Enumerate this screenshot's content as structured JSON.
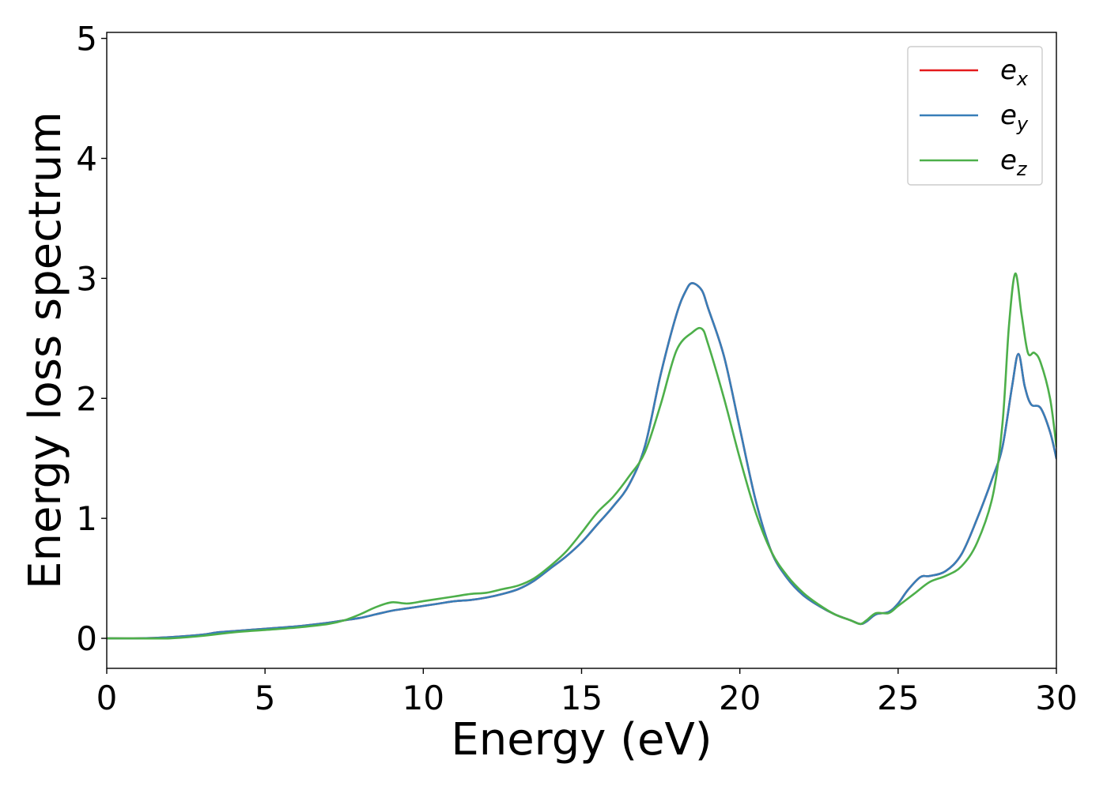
{
  "chart_data": {
    "type": "line",
    "title": "",
    "xlabel": "Energy (eV)",
    "ylabel": "Energy loss spectrum",
    "xlim": [
      0,
      30
    ],
    "ylim": [
      -0.25,
      5.05
    ],
    "xticks": [
      0,
      5,
      10,
      15,
      20,
      25,
      30
    ],
    "yticks": [
      0,
      1,
      2,
      3,
      4,
      5
    ],
    "grid": false,
    "legend_position": "top-right",
    "series": [
      {
        "name": "e_x",
        "label_base": "e",
        "label_sub": "x",
        "color": "#e41a1c",
        "x": [
          0,
          1,
          2,
          3,
          3.5,
          4,
          5,
          6,
          7,
          7.5,
          8,
          8.5,
          9,
          9.5,
          10,
          10.5,
          11,
          11.5,
          12,
          12.5,
          13,
          13.5,
          14,
          14.5,
          15,
          15.5,
          16,
          16.5,
          17,
          17.5,
          18,
          18.3,
          18.5,
          18.8,
          19,
          19.5,
          20,
          20.5,
          21,
          21.5,
          22,
          22.5,
          23,
          23.5,
          23.8,
          24,
          24.3,
          24.7,
          25,
          25.3,
          25.7,
          26,
          26.5,
          27,
          27.5,
          28,
          28.3,
          28.6,
          28.8,
          29,
          29.2,
          29.5,
          29.8,
          30
        ],
        "y": [
          0.0,
          0.0,
          0.01,
          0.03,
          0.05,
          0.06,
          0.08,
          0.1,
          0.13,
          0.15,
          0.17,
          0.2,
          0.23,
          0.25,
          0.27,
          0.29,
          0.31,
          0.32,
          0.34,
          0.37,
          0.41,
          0.48,
          0.58,
          0.68,
          0.8,
          0.95,
          1.1,
          1.28,
          1.6,
          2.2,
          2.7,
          2.9,
          2.96,
          2.9,
          2.75,
          2.35,
          1.75,
          1.15,
          0.72,
          0.5,
          0.36,
          0.27,
          0.2,
          0.15,
          0.12,
          0.14,
          0.2,
          0.22,
          0.29,
          0.4,
          0.51,
          0.52,
          0.56,
          0.7,
          1.0,
          1.35,
          1.6,
          2.1,
          2.37,
          2.1,
          1.95,
          1.92,
          1.72,
          1.5
        ]
      },
      {
        "name": "e_y",
        "label_base": "e",
        "label_sub": "y",
        "color": "#377eb8",
        "x": [
          0,
          1,
          2,
          3,
          3.5,
          4,
          5,
          6,
          7,
          7.5,
          8,
          8.5,
          9,
          9.5,
          10,
          10.5,
          11,
          11.5,
          12,
          12.5,
          13,
          13.5,
          14,
          14.5,
          15,
          15.5,
          16,
          16.5,
          17,
          17.5,
          18,
          18.3,
          18.5,
          18.8,
          19,
          19.5,
          20,
          20.5,
          21,
          21.5,
          22,
          22.5,
          23,
          23.5,
          23.8,
          24,
          24.3,
          24.7,
          25,
          25.3,
          25.7,
          26,
          26.5,
          27,
          27.5,
          28,
          28.3,
          28.6,
          28.8,
          29,
          29.2,
          29.5,
          29.8,
          30
        ],
        "y": [
          0.0,
          0.0,
          0.01,
          0.03,
          0.05,
          0.06,
          0.08,
          0.1,
          0.13,
          0.15,
          0.17,
          0.2,
          0.23,
          0.25,
          0.27,
          0.29,
          0.31,
          0.32,
          0.34,
          0.37,
          0.41,
          0.48,
          0.58,
          0.68,
          0.8,
          0.95,
          1.1,
          1.28,
          1.6,
          2.2,
          2.7,
          2.9,
          2.96,
          2.9,
          2.75,
          2.35,
          1.75,
          1.15,
          0.72,
          0.5,
          0.36,
          0.27,
          0.2,
          0.15,
          0.12,
          0.14,
          0.2,
          0.22,
          0.29,
          0.4,
          0.51,
          0.52,
          0.56,
          0.7,
          1.0,
          1.35,
          1.6,
          2.1,
          2.37,
          2.1,
          1.95,
          1.92,
          1.72,
          1.5
        ]
      },
      {
        "name": "e_z",
        "label_base": "e",
        "label_sub": "z",
        "color": "#4daf4a",
        "x": [
          0,
          1,
          2,
          3,
          4,
          5,
          6,
          7,
          7.5,
          8,
          8.5,
          9,
          9.5,
          10,
          10.5,
          11,
          11.5,
          12,
          12.5,
          13,
          13.5,
          14,
          14.5,
          15,
          15.5,
          16,
          16.5,
          17,
          17.5,
          18,
          18.5,
          18.8,
          19,
          19.5,
          20,
          20.5,
          21,
          21.5,
          22,
          22.5,
          23,
          23.5,
          23.8,
          24,
          24.3,
          24.7,
          25,
          25.5,
          26,
          26.5,
          27,
          27.5,
          28,
          28.3,
          28.5,
          28.7,
          28.9,
          29.1,
          29.3,
          29.5,
          29.8,
          30
        ],
        "y": [
          0.0,
          0.0,
          0.0,
          0.02,
          0.05,
          0.07,
          0.09,
          0.12,
          0.15,
          0.2,
          0.26,
          0.3,
          0.29,
          0.31,
          0.33,
          0.35,
          0.37,
          0.38,
          0.41,
          0.44,
          0.5,
          0.6,
          0.72,
          0.88,
          1.05,
          1.18,
          1.35,
          1.55,
          1.95,
          2.4,
          2.55,
          2.58,
          2.45,
          2.0,
          1.5,
          1.05,
          0.72,
          0.52,
          0.38,
          0.28,
          0.2,
          0.15,
          0.12,
          0.15,
          0.21,
          0.21,
          0.27,
          0.37,
          0.47,
          0.52,
          0.6,
          0.8,
          1.2,
          1.8,
          2.6,
          3.04,
          2.7,
          2.38,
          2.38,
          2.3,
          2.0,
          1.6
        ]
      }
    ]
  }
}
